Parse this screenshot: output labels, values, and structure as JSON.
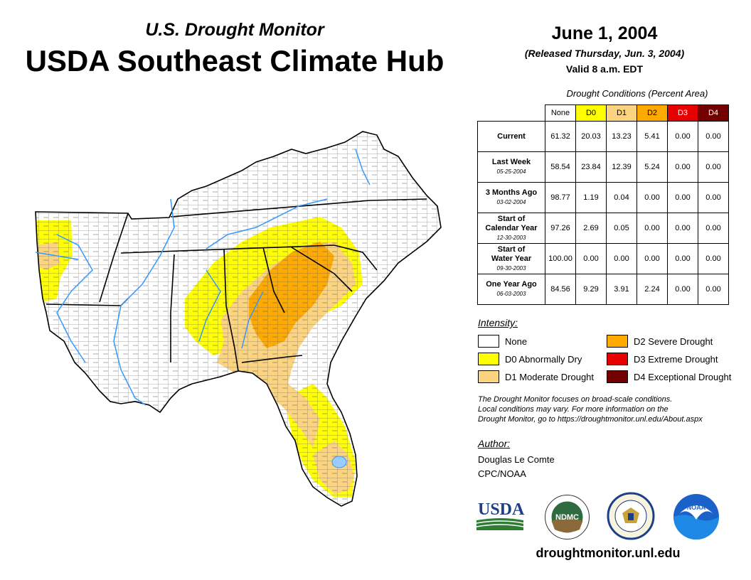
{
  "header": {
    "subtitle": "U.S. Drought Monitor",
    "title": "USDA Southeast Climate Hub",
    "date": "June 1, 2004",
    "released": "(Released Thursday, Jun. 3, 2004)",
    "valid": "Valid 8 a.m. EDT"
  },
  "table": {
    "caption": "Drought Conditions (Percent Area)",
    "columns": [
      "None",
      "D0",
      "D1",
      "D2",
      "D3",
      "D4"
    ],
    "column_colors": [
      "#ffffff",
      "#ffff00",
      "#fcd37f",
      "#ffaa00",
      "#e60000",
      "#730000"
    ],
    "rows": [
      {
        "label": "Current",
        "label2": "",
        "date": "",
        "values": [
          "61.32",
          "20.03",
          "13.23",
          "5.41",
          "0.00",
          "0.00"
        ]
      },
      {
        "label": "Last Week",
        "label2": "",
        "date": "05-25-2004",
        "values": [
          "58.54",
          "23.84",
          "12.39",
          "5.24",
          "0.00",
          "0.00"
        ]
      },
      {
        "label": "3 Months Ago",
        "label2": "",
        "date": "03-02-2004",
        "values": [
          "98.77",
          "1.19",
          "0.04",
          "0.00",
          "0.00",
          "0.00"
        ]
      },
      {
        "label": "Start of",
        "label2": "Calendar Year",
        "date": "12-30-2003",
        "values": [
          "97.26",
          "2.69",
          "0.05",
          "0.00",
          "0.00",
          "0.00"
        ]
      },
      {
        "label": "Start of",
        "label2": "Water Year",
        "date": "09-30-2003",
        "values": [
          "100.00",
          "0.00",
          "0.00",
          "0.00",
          "0.00",
          "0.00"
        ]
      },
      {
        "label": "One Year Ago",
        "label2": "",
        "date": "06-03-2003",
        "values": [
          "84.56",
          "9.29",
          "3.91",
          "2.24",
          "0.00",
          "0.00"
        ]
      }
    ]
  },
  "legend": {
    "title": "Intensity:",
    "items": [
      {
        "label": "None",
        "color": "#ffffff"
      },
      {
        "label": "D0 Abnormally Dry",
        "color": "#ffff00"
      },
      {
        "label": "D1 Moderate Drought",
        "color": "#fcd37f"
      },
      {
        "label": "D2 Severe Drought",
        "color": "#ffaa00"
      },
      {
        "label": "D3 Extreme Drought",
        "color": "#e60000"
      },
      {
        "label": "D4 Exceptional Drought",
        "color": "#730000"
      }
    ]
  },
  "note": {
    "line1": "The Drought Monitor focuses on broad-scale conditions.",
    "line2": "Local conditions may vary. For more information on the",
    "line3": "Drought Monitor, go to https://droughtmonitor.unl.edu/About.aspx"
  },
  "author": {
    "title": "Author:",
    "name": "Douglas Le Comte",
    "org": "CPC/NOAA"
  },
  "logos": {
    "usda": "USDA",
    "ndmc": "NDMC",
    "noaa": "NOAA"
  },
  "website": "droughtmonitor.unl.edu",
  "colors": {
    "river": "#3399ff",
    "lake": "#99ccff",
    "county_line": "#444444"
  }
}
